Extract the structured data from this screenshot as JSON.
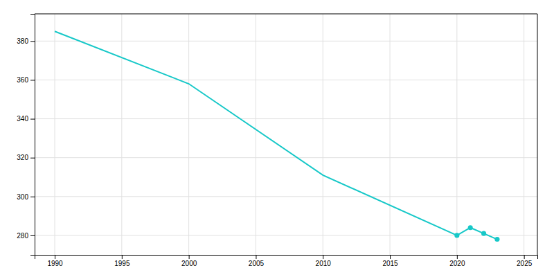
{
  "chart_data": {
    "type": "line",
    "x": [
      1990,
      2000,
      2010,
      2020,
      2021,
      2022,
      2023
    ],
    "series": [
      {
        "values": [
          385,
          358,
          311,
          280,
          284,
          281,
          278
        ],
        "color": "#17c8c8"
      },
      {
        "type": "scatter",
        "x": [
          2020,
          2021,
          2022,
          2023
        ],
        "values": [
          280,
          284,
          281,
          278
        ],
        "color": "#17c8c8",
        "marker": "circle"
      }
    ],
    "xlim": [
      1988.5,
      2026
    ],
    "ylim": [
      270,
      394
    ],
    "xticks": [
      1990,
      1995,
      2000,
      2005,
      2010,
      2015,
      2020,
      2025
    ],
    "yticks": [
      280,
      300,
      320,
      340,
      360,
      380
    ],
    "grid": true
  }
}
